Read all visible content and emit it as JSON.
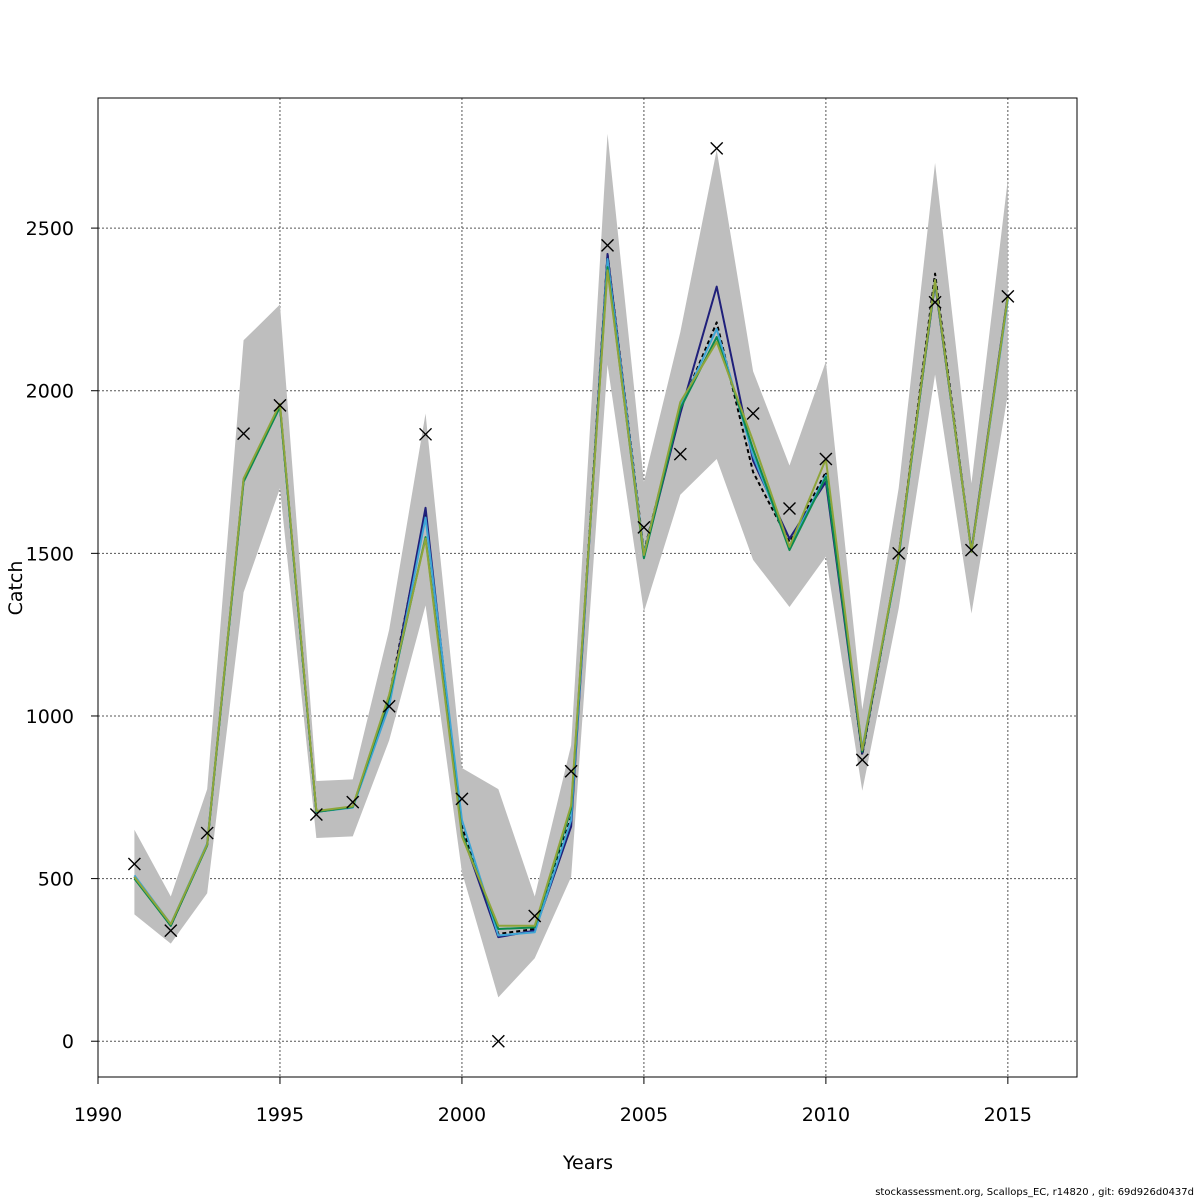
{
  "chart_data": {
    "type": "line",
    "title": "",
    "xlabel": "Years",
    "ylabel": "Catch",
    "xlim": [
      1990,
      2016.9
    ],
    "ylim": [
      -110,
      2900
    ],
    "x_ticks": [
      1990,
      1995,
      2000,
      2005,
      2010,
      2015
    ],
    "y_ticks": [
      0,
      500,
      1000,
      1500,
      2000,
      2500
    ],
    "grid": true,
    "legend": "none",
    "x": [
      1991,
      1992,
      1993,
      1994,
      1995,
      1996,
      1997,
      1998,
      1999,
      2000,
      2001,
      2002,
      2003,
      2004,
      2005,
      2006,
      2007,
      2008,
      2009,
      2010,
      2011,
      2012,
      2013,
      2014,
      2015
    ],
    "confidence_band": {
      "color": "#bebebe",
      "lower": [
        390,
        300,
        455,
        1380,
        1700,
        625,
        630,
        925,
        1340,
        520,
        135,
        255,
        505,
        2080,
        1320,
        1680,
        1790,
        1480,
        1335,
        1490,
        770,
        1330,
        2050,
        1315,
        1990
      ],
      "upper": [
        650,
        445,
        775,
        2155,
        2265,
        800,
        805,
        1265,
        1930,
        840,
        775,
        445,
        910,
        2790,
        1720,
        2180,
        2740,
        2060,
        1770,
        2090,
        1020,
        1700,
        2700,
        1715,
        2650
      ]
    },
    "series": [
      {
        "color": "#000000",
        "dashed": true,
        "values": [
          505,
          355,
          605,
          1725,
          1955,
          705,
          720,
          1060,
          1620,
          660,
          330,
          345,
          690,
          2420,
          1505,
          1945,
          2210,
          1750,
          1535,
          1750,
          880,
          1495,
          2360,
          1505,
          2290
        ]
      },
      {
        "color": "#1f1f7a",
        "values": [
          505,
          355,
          605,
          1725,
          1955,
          705,
          720,
          1040,
          1640,
          640,
          320,
          340,
          660,
          2420,
          1490,
          1930,
          2320,
          1785,
          1545,
          1720,
          885,
          1495,
          2330,
          1510,
          2295
        ]
      },
      {
        "color": "#3fa5d6",
        "values": [
          510,
          360,
          608,
          1725,
          1955,
          705,
          718,
          1030,
          1610,
          680,
          325,
          335,
          680,
          2405,
          1500,
          1950,
          2190,
          1800,
          1520,
          1740,
          900,
          1485,
          2340,
          1505,
          2280
        ]
      },
      {
        "color": "#0b8a4f",
        "values": [
          500,
          355,
          602,
          1720,
          1950,
          705,
          720,
          1055,
          1550,
          640,
          345,
          350,
          715,
          2380,
          1485,
          1945,
          2165,
          1820,
          1510,
          1735,
          890,
          1490,
          2335,
          1505,
          2290
        ]
      },
      {
        "color": "#8fa53a",
        "values": [
          505,
          360,
          605,
          1730,
          1960,
          708,
          722,
          1065,
          1545,
          630,
          355,
          355,
          725,
          2370,
          1495,
          1965,
          2150,
          1845,
          1520,
          1790,
          895,
          1495,
          2340,
          1505,
          2290
        ]
      }
    ],
    "observed": {
      "marker": "x",
      "values": [
        545,
        340,
        640,
        1868,
        1955,
        697,
        735,
        1030,
        1866,
        745,
        0,
        385,
        830,
        2447,
        1580,
        1805,
        2745,
        1930,
        1638,
        1790,
        865,
        1500,
        2272,
        1510,
        2290
      ]
    }
  },
  "footer": {
    "credit": "stockassessment.org, Scallops_EC, r14820 , git: 69d926d0437d"
  }
}
